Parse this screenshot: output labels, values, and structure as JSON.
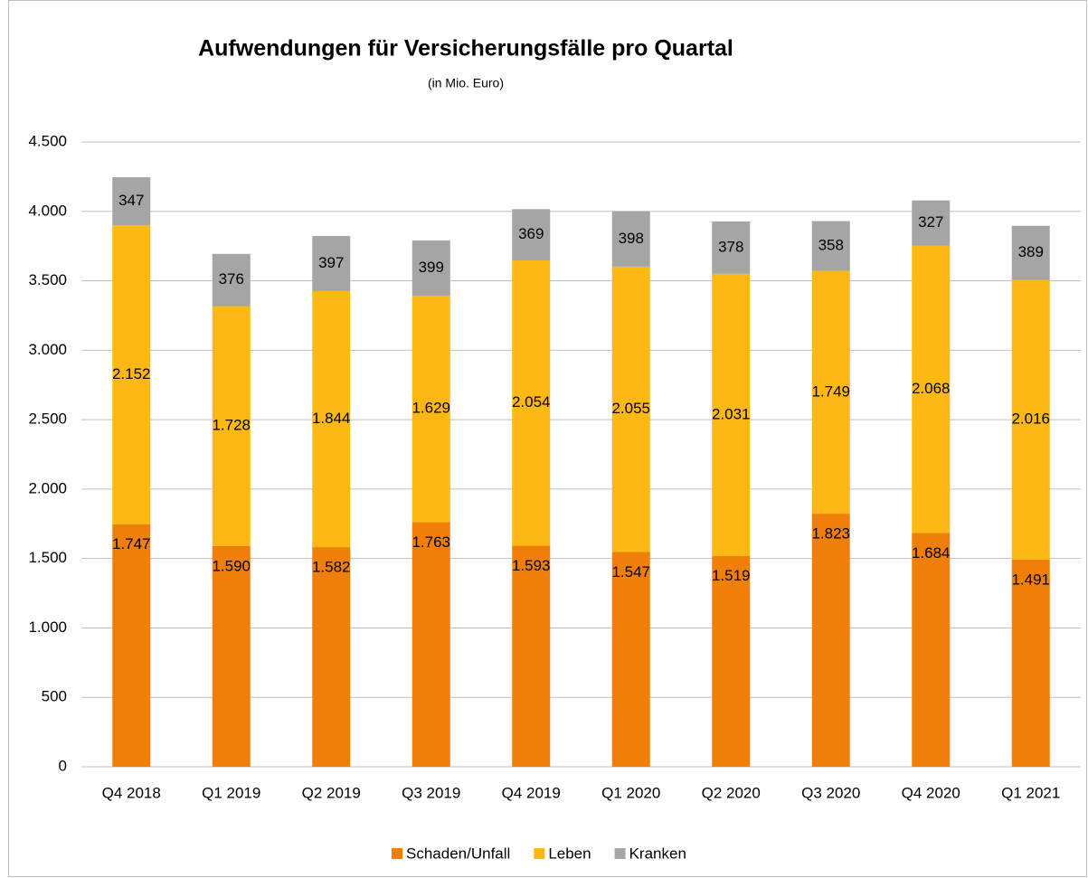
{
  "chart_data": {
    "type": "stacked_bar",
    "title": "Aufwendungen für Versicherungsfälle pro Quartal",
    "subtitle": "(in Mio. Euro)",
    "categories": [
      "Q4 2018",
      "Q1 2019",
      "Q2 2019",
      "Q3 2019",
      "Q4 2019",
      "Q1 2020",
      "Q2 2020",
      "Q3 2020",
      "Q4 2020",
      "Q1 2021"
    ],
    "series": [
      {
        "name": "Schaden/Unfall",
        "color": "#f07f09",
        "values": [
          1747,
          1590,
          1582,
          1763,
          1593,
          1547,
          1519,
          1823,
          1684,
          1491
        ],
        "value_labels": [
          "1.747",
          "1.590",
          "1.582",
          "1.763",
          "1.593",
          "1.547",
          "1.519",
          "1.823",
          "1.684",
          "1.491"
        ]
      },
      {
        "name": "Leben",
        "color": "#fdb813",
        "values": [
          2152,
          1728,
          1844,
          1629,
          2054,
          2055,
          2031,
          1749,
          2068,
          2016
        ],
        "value_labels": [
          "2.152",
          "1.728",
          "1.844",
          "1.629",
          "2.054",
          "2.055",
          "2.031",
          "1.749",
          "2.068",
          "2.016"
        ]
      },
      {
        "name": "Kranken",
        "color": "#a5a5a5",
        "values": [
          347,
          376,
          397,
          399,
          369,
          398,
          378,
          358,
          327,
          389
        ]
      }
    ],
    "ylim": [
      0,
      4500
    ],
    "yticks": [
      0,
      500,
      {
        "value": 1000,
        "label": "1.000"
      },
      {
        "value": 1500,
        "label": "1.500"
      },
      {
        "value": 2000,
        "label": "2.000"
      },
      {
        "value": 2500,
        "label": "2.500"
      },
      {
        "value": 3000,
        "label": "3.000"
      },
      {
        "value": 3500,
        "label": "3.500"
      },
      {
        "value": 4000,
        "label": "4.000"
      },
      {
        "value": 4500,
        "label": "4.500"
      }
    ],
    "grid": true,
    "legend": "bottom"
  }
}
